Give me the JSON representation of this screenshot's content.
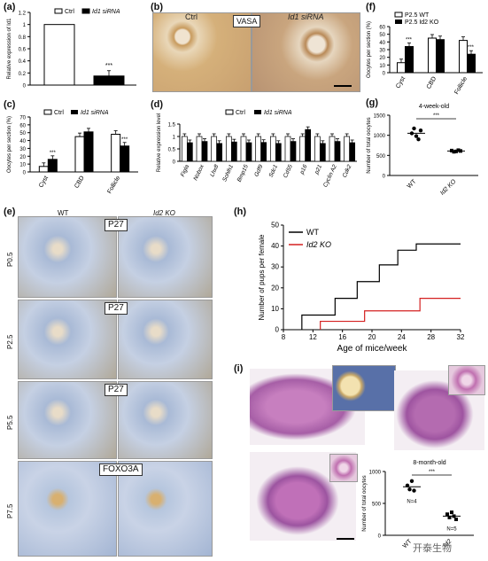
{
  "panels": {
    "a": {
      "label": "(a)"
    },
    "b": {
      "label": "(b)",
      "ctrl": "Ctrl",
      "siRNA": "Id1 siRNA",
      "tag": "VASA"
    },
    "c": {
      "label": "(c)"
    },
    "d": {
      "label": "(d)"
    },
    "e": {
      "label": "(e)",
      "wt": "WT",
      "ko": "Id2 KO",
      "rows": [
        {
          "age": "P0.5",
          "tag": "P27"
        },
        {
          "age": "P2.5",
          "tag": "P27"
        },
        {
          "age": "P5.5",
          "tag": "P27"
        },
        {
          "age": "P7.5",
          "tag": "FOXO3A"
        }
      ]
    },
    "f": {
      "label": "(f)"
    },
    "g": {
      "label": "(g)"
    },
    "h": {
      "label": "(h)"
    },
    "i": {
      "label": "(i)",
      "n1": "N=4",
      "n2": "N=5"
    }
  },
  "chart_data": [
    {
      "id": "a",
      "type": "bar",
      "categories": [
        "Ctrl",
        "Id1 siRNA"
      ],
      "values": [
        1.0,
        0.15
      ],
      "ylabel": "Relative expression of Id1",
      "ylim": [
        0,
        1.2
      ],
      "yticks": [
        "0",
        "0.2",
        "0.4",
        "0.6",
        "0.8",
        "1",
        "1.2"
      ],
      "legend": [
        "Ctrl",
        "Id1 siRNA"
      ],
      "annotation": "***"
    },
    {
      "id": "c",
      "type": "bar",
      "categories": [
        "Cyst",
        "CBD",
        "Follicle"
      ],
      "series": [
        {
          "name": "Ctrl",
          "values": [
            7,
            45,
            48
          ]
        },
        {
          "name": "Id1 siRNA",
          "values": [
            16,
            51,
            33
          ]
        }
      ],
      "ylabel": "Oocytes per section (%)",
      "ylim": [
        0,
        70
      ],
      "yticks": [
        "0",
        "10",
        "20",
        "30",
        "40",
        "50",
        "60",
        "70"
      ],
      "annotations": [
        "***",
        "***"
      ]
    },
    {
      "id": "d",
      "type": "bar",
      "categories": [
        "Figla",
        "Nobox",
        "Lhx8",
        "Sohlh1",
        "Bmp15",
        "Gdf9",
        "Sdc1",
        "Cd55",
        "p16",
        "p21",
        "Cyclin A2",
        "Cdk2"
      ],
      "series": [
        {
          "name": "Ctrl",
          "values": [
            1,
            1,
            1,
            1,
            1,
            1,
            1,
            1,
            1,
            1,
            1,
            1
          ]
        },
        {
          "name": "Id1 siRNA",
          "values": [
            0.75,
            0.8,
            0.72,
            0.78,
            0.75,
            0.76,
            0.72,
            0.8,
            1.28,
            0.72,
            0.8,
            0.75
          ]
        }
      ],
      "ylabel": "Relative expression level",
      "ylim": [
        0,
        1.5
      ],
      "yticks": [
        "0",
        "0.5",
        "1",
        "1.5"
      ]
    },
    {
      "id": "f",
      "type": "bar",
      "categories": [
        "Cyst",
        "CBD",
        "Follicle"
      ],
      "series": [
        {
          "name": "P2.5 WT",
          "values": [
            13,
            45,
            42
          ]
        },
        {
          "name": "P2.5 Id2 KO",
          "values": [
            34,
            43,
            24
          ]
        }
      ],
      "ylabel": "Oocytes per section (%)",
      "ylim": [
        0,
        60
      ],
      "yticks": [
        "0",
        "10",
        "20",
        "30",
        "40",
        "50",
        "60"
      ],
      "annotations": [
        "***",
        "***"
      ]
    },
    {
      "id": "g",
      "type": "scatter",
      "title": "4-week-old",
      "categories": [
        "WT",
        "Id2 KO"
      ],
      "series": [
        {
          "name": "WT",
          "values": [
            1050,
            1170,
            980,
            900,
            1120
          ],
          "mean": 1050
        },
        {
          "name": "Id2 KO",
          "values": [
            620,
            590,
            600,
            630,
            610
          ],
          "mean": 610
        }
      ],
      "ylabel": "Number of total oocytes",
      "ylim": [
        0,
        1500
      ],
      "yticks": [
        "0",
        "500",
        "1000",
        "1500"
      ],
      "annotation": "***"
    },
    {
      "id": "h",
      "type": "line",
      "xlabel": "Age of mice/week",
      "ylabel": "Number of pups per female",
      "xlim": [
        8,
        32
      ],
      "ylim": [
        0,
        50
      ],
      "xticks": [
        "8",
        "12",
        "16",
        "20",
        "24",
        "28",
        "32"
      ],
      "yticks": [
        "0",
        "10",
        "20",
        "30",
        "40",
        "50"
      ],
      "legend": [
        "WT",
        "Id2 KO"
      ],
      "series": [
        {
          "name": "WT",
          "x": [
            10.5,
            10.5,
            15,
            15,
            18,
            18,
            21,
            21,
            23.5,
            23.5,
            26,
            26,
            29,
            29,
            32
          ],
          "y": [
            0,
            7,
            7,
            15,
            15,
            23,
            23,
            31,
            31,
            38,
            38,
            41,
            41,
            41,
            41
          ],
          "color": "#000000"
        },
        {
          "name": "Id2 KO",
          "x": [
            13,
            13,
            19,
            19,
            26.5,
            26.5,
            32
          ],
          "y": [
            0,
            4,
            4,
            9,
            9,
            15,
            15
          ],
          "color": "#d42020"
        }
      ]
    },
    {
      "id": "i",
      "type": "scatter",
      "title": "8-month-old",
      "categories": [
        "WT",
        "Id2"
      ],
      "series": [
        {
          "name": "WT",
          "values": [
            780,
            720,
            850,
            700
          ],
          "mean": 760
        },
        {
          "name": "Id2",
          "values": [
            330,
            280,
            360,
            300,
            250
          ],
          "mean": 300
        }
      ],
      "ylabel": "Number of total oocytes",
      "ylim": [
        0,
        1000
      ],
      "yticks": [
        "0",
        "500",
        "1000"
      ],
      "annotation": "***"
    }
  ],
  "watermark": "开泰生物"
}
